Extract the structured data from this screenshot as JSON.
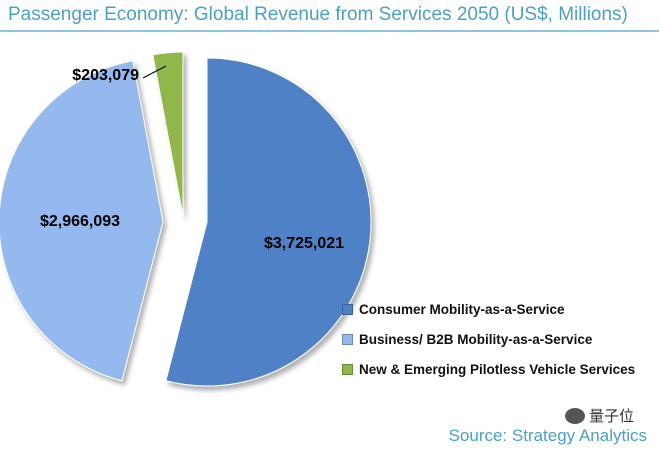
{
  "title": "Passenger Economy: Global Revenue from Services 2050 (US$, Millions)",
  "source": "Source: Strategy Analytics",
  "watermark": "量子位",
  "chart_data": {
    "type": "pie",
    "title": "Passenger Economy: Global Revenue from Services 2050 (US$, Millions)",
    "slices": [
      {
        "name": "Consumer Mobility-as-a-Service",
        "value": 3725021,
        "label": "$3,725,021",
        "color": "#4f81c7"
      },
      {
        "name": "Business/ B2B Mobility-as-a-Service",
        "value": 2966093,
        "label": "$2,966,093",
        "color": "#94b9ee"
      },
      {
        "name": "New & Emerging Pilotless Vehicle Services",
        "value": 203079,
        "label": "$203,079",
        "color": "#8fb84a"
      }
    ],
    "legend": "right-bottom"
  },
  "legend": {
    "items": [
      {
        "label": "Consumer Mobility-as-a-Service",
        "color": "#4f81c7"
      },
      {
        "label": "Business/ B2B Mobility-as-a-Service",
        "color": "#94b9ee"
      },
      {
        "label": "New & Emerging Pilotless Vehicle Services",
        "color": "#8fb84a"
      }
    ]
  }
}
